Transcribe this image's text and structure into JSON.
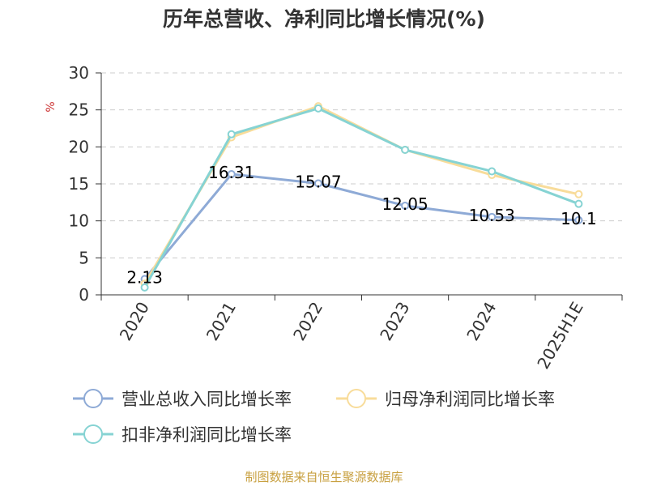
{
  "chart_data": {
    "type": "line",
    "title": "历年总营收、净利同比增长情况(%)",
    "ylabel": "%",
    "xlabel": "",
    "categories": [
      "2020",
      "2021",
      "2022",
      "2023",
      "2024",
      "2025H1E"
    ],
    "ylim": [
      0,
      30
    ],
    "yticks": [
      "0",
      "5",
      "10",
      "15",
      "20",
      "25",
      "30"
    ],
    "grid": true,
    "legend_position": "bottom",
    "series": [
      {
        "name": "营业总收入同比增长率",
        "color": "#8eaad6",
        "values": [
          2.13,
          16.31,
          15.07,
          12.05,
          10.53,
          10.1
        ],
        "labels": [
          "2.13",
          "16.31",
          "15.07",
          "12.05",
          "10.53",
          "10.1"
        ]
      },
      {
        "name": "归母净利润同比增长率",
        "color": "#f8dc9a",
        "values": [
          1.5,
          21.3,
          25.5,
          19.6,
          16.2,
          13.6
        ]
      },
      {
        "name": "扣非净利润同比增长率",
        "color": "#86d3d3",
        "values": [
          1.0,
          21.7,
          25.2,
          19.6,
          16.7,
          12.3
        ]
      }
    ]
  },
  "source_note": "制图数据来自恒生聚源数据库"
}
